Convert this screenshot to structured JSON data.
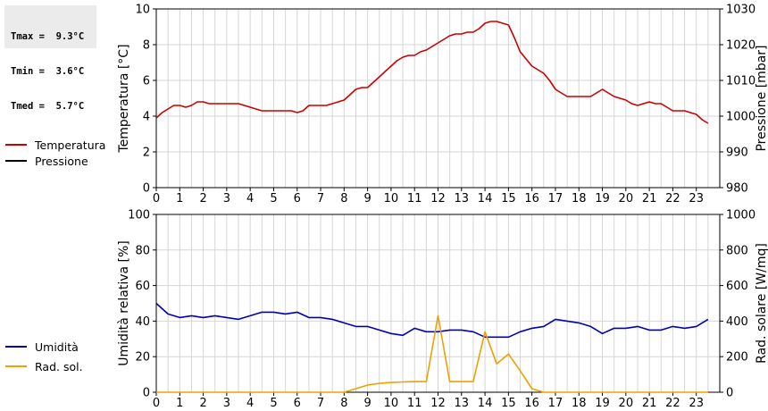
{
  "stats": [
    {
      "label": "Tmax",
      "value": "9.3°C"
    },
    {
      "label": "Tmin",
      "value": "3.6°C"
    },
    {
      "label": "Tmed",
      "value": "5.7°C"
    }
  ],
  "chart_data": [
    {
      "type": "line",
      "ylabel": "Temperatura [°C]",
      "ylabel_right": "Pressione [mbar]",
      "ylim": [
        0,
        10
      ],
      "ylim_right": [
        980,
        1030
      ],
      "yticks": [
        "0",
        "2",
        "4",
        "6",
        "8",
        "10"
      ],
      "yticks_right": [
        "980",
        "990",
        "1000",
        "1010",
        "1020",
        "1030"
      ],
      "xlim": [
        0,
        24
      ],
      "xticks": [
        "0",
        "1",
        "2",
        "3",
        "4",
        "5",
        "6",
        "7",
        "8",
        "9",
        "10",
        "11",
        "12",
        "13",
        "14",
        "15",
        "16",
        "17",
        "18",
        "19",
        "20",
        "21",
        "22",
        "23"
      ],
      "grid": true,
      "legend": "left",
      "series": [
        {
          "name": "Temperatura",
          "color": "#cc0000",
          "axis": "left",
          "x": [
            0,
            0.25,
            0.5,
            0.75,
            1,
            1.25,
            1.5,
            1.75,
            2,
            2.25,
            2.5,
            2.75,
            3,
            3.25,
            3.5,
            3.75,
            4,
            4.25,
            4.5,
            4.75,
            5,
            5.25,
            5.5,
            5.75,
            6,
            6.25,
            6.5,
            6.75,
            7,
            7.25,
            7.5,
            7.75,
            8,
            8.25,
            8.5,
            8.75,
            9,
            9.25,
            9.5,
            9.75,
            10,
            10.25,
            10.5,
            10.75,
            11,
            11.25,
            11.5,
            11.75,
            12,
            12.25,
            12.5,
            12.75,
            13,
            13.25,
            13.5,
            13.75,
            14,
            14.25,
            14.5,
            14.75,
            15,
            15.25,
            15.5,
            15.75,
            16,
            16.25,
            16.5,
            16.75,
            17,
            17.25,
            17.5,
            17.75,
            18,
            18.25,
            18.5,
            18.75,
            19,
            19.25,
            19.5,
            19.75,
            20,
            20.25,
            20.5,
            20.75,
            21,
            21.25,
            21.5,
            21.75,
            22,
            22.25,
            22.5,
            22.75,
            23,
            23.25,
            23.5
          ],
          "values": [
            3.9,
            4.2,
            4.4,
            4.6,
            4.6,
            4.5,
            4.6,
            4.8,
            4.8,
            4.7,
            4.7,
            4.7,
            4.7,
            4.7,
            4.7,
            4.6,
            4.5,
            4.4,
            4.3,
            4.3,
            4.3,
            4.3,
            4.3,
            4.3,
            4.2,
            4.3,
            4.6,
            4.6,
            4.6,
            4.6,
            4.7,
            4.8,
            4.9,
            5.2,
            5.5,
            5.6,
            5.6,
            5.9,
            6.2,
            6.5,
            6.8,
            7.1,
            7.3,
            7.4,
            7.4,
            7.6,
            7.7,
            7.9,
            8.1,
            8.3,
            8.5,
            8.6,
            8.6,
            8.7,
            8.7,
            8.9,
            9.2,
            9.3,
            9.3,
            9.2,
            9.1,
            8.4,
            7.6,
            7.2,
            6.8,
            6.6,
            6.4,
            6.0,
            5.5,
            5.3,
            5.1,
            5.1,
            5.1,
            5.1,
            5.1,
            5.3,
            5.5,
            5.3,
            5.1,
            5.0,
            4.9,
            4.7,
            4.6,
            4.7,
            4.8,
            4.7,
            4.7,
            4.5,
            4.3,
            4.3,
            4.3,
            4.2,
            4.1,
            3.8,
            3.6
          ]
        },
        {
          "name": "Pressione",
          "color": "#000000",
          "axis": "right",
          "x": [],
          "values": []
        }
      ]
    },
    {
      "type": "line",
      "ylabel": "Umidità relativa [%]",
      "ylabel_right": "Rad. solare [W/mq]",
      "ylim": [
        0,
        100
      ],
      "ylim_right": [
        0,
        1000
      ],
      "yticks": [
        "0",
        "20",
        "40",
        "60",
        "80",
        "100"
      ],
      "yticks_right": [
        "0",
        "200",
        "400",
        "600",
        "800",
        "1000"
      ],
      "xlim": [
        0,
        24
      ],
      "xticks": [
        "0",
        "1",
        "2",
        "3",
        "4",
        "5",
        "6",
        "7",
        "8",
        "9",
        "10",
        "11",
        "12",
        "13",
        "14",
        "15",
        "16",
        "17",
        "18",
        "19",
        "20",
        "21",
        "22",
        "23"
      ],
      "grid": true,
      "legend": "left",
      "series": [
        {
          "name": "Umidità",
          "color": "#0000bb",
          "axis": "left",
          "x": [
            0,
            0.5,
            1,
            1.5,
            2,
            2.5,
            3,
            3.5,
            4,
            4.5,
            5,
            5.5,
            6,
            6.5,
            7,
            7.5,
            8,
            8.5,
            9,
            9.5,
            10,
            10.5,
            11,
            11.5,
            12,
            12.5,
            13,
            13.5,
            14,
            14.5,
            15,
            15.5,
            16,
            16.5,
            17,
            17.5,
            18,
            18.5,
            19,
            19.5,
            20,
            20.5,
            21,
            21.5,
            22,
            22.5,
            23,
            23.5
          ],
          "values": [
            50,
            44,
            42,
            43,
            42,
            43,
            42,
            41,
            43,
            45,
            45,
            44,
            45,
            42,
            42,
            41,
            39,
            37,
            37,
            35,
            33,
            32,
            36,
            34,
            34,
            35,
            35,
            34,
            31,
            31,
            31,
            34,
            36,
            37,
            41,
            40,
            39,
            37,
            33,
            36,
            36,
            37,
            35,
            35,
            37,
            36,
            37,
            41
          ]
        },
        {
          "name": "Rad. sol.",
          "color": "#f0a000",
          "axis": "right",
          "x": [
            0,
            1,
            2,
            3,
            4,
            5,
            6,
            7,
            8,
            8.25,
            8.5,
            8.75,
            9,
            9.5,
            10,
            10.5,
            11,
            11.5,
            12,
            12.5,
            13,
            13.5,
            14,
            14.5,
            15,
            15.5,
            16,
            16.5,
            17,
            18,
            19,
            20,
            21,
            22,
            23,
            23.5
          ],
          "values": [
            0,
            0,
            0,
            0,
            0,
            0,
            0,
            0,
            0,
            10,
            20,
            30,
            40,
            50,
            55,
            58,
            60,
            60,
            430,
            60,
            60,
            60,
            340,
            160,
            215,
            120,
            20,
            0,
            0,
            0,
            0,
            0,
            0,
            0,
            0,
            0
          ]
        }
      ]
    }
  ]
}
